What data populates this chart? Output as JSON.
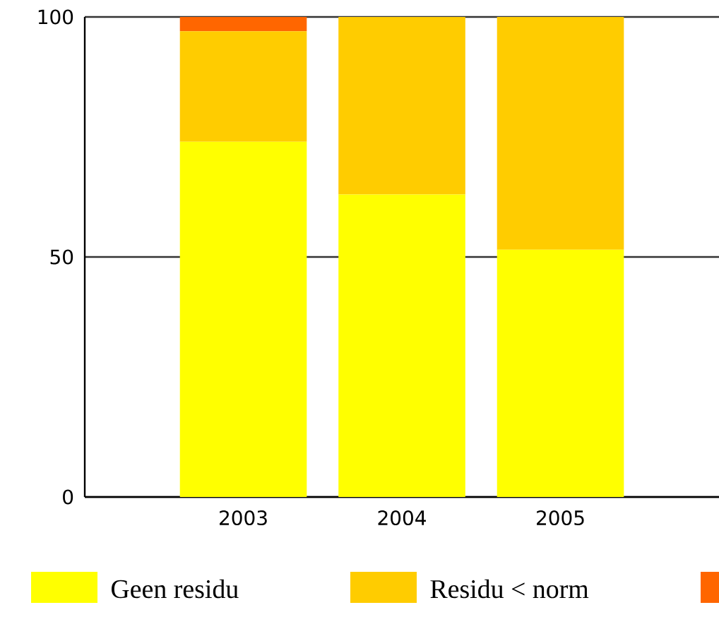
{
  "chart_data": {
    "type": "bar",
    "stacked": true,
    "categories": [
      "2003",
      "2004",
      "2005"
    ],
    "series": [
      {
        "name": "Geen residu",
        "color": "#ffff00",
        "values": [
          74,
          63,
          51.5
        ]
      },
      {
        "name": "Residu < norm",
        "color": "#ffcc00",
        "values": [
          23,
          37,
          48.5
        ]
      },
      {
        "color": "#ff6600",
        "values": [
          3,
          0,
          0
        ]
      }
    ],
    "ylim": [
      0,
      100
    ],
    "yticks": [
      0,
      50,
      100
    ],
    "grid": "y",
    "legend": "bottom"
  }
}
